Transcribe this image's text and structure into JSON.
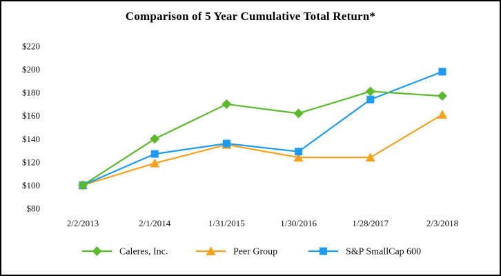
{
  "chart_data": {
    "type": "line",
    "title": "Comparison of 5 Year Cumulative Total Return*",
    "categories": [
      "2/2/2013",
      "2/1/2014",
      "1/31/2015",
      "1/30/2016",
      "1/28/2017",
      "2/3/2018"
    ],
    "series": [
      {
        "name": "Caleres, Inc.",
        "marker": "diamond",
        "color": "#5ABA2C",
        "values": [
          100,
          140,
          170,
          162,
          181,
          177
        ]
      },
      {
        "name": "Peer Group",
        "marker": "triangle",
        "color": "#F7A21F",
        "values": [
          100,
          119,
          135,
          124,
          124,
          161
        ]
      },
      {
        "name": "S&P SmallCap 600",
        "marker": "square",
        "color": "#1E9BF0",
        "values": [
          100,
          127,
          136,
          129,
          174,
          198
        ]
      }
    ],
    "y_ticks": [
      "$220",
      "$200",
      "$180",
      "$160",
      "$140",
      "$120",
      "$100",
      "$80"
    ],
    "ylim": [
      80,
      220
    ],
    "grid": false,
    "axis_lines": false,
    "legend_position": "bottom",
    "currency_prefix": "$"
  }
}
